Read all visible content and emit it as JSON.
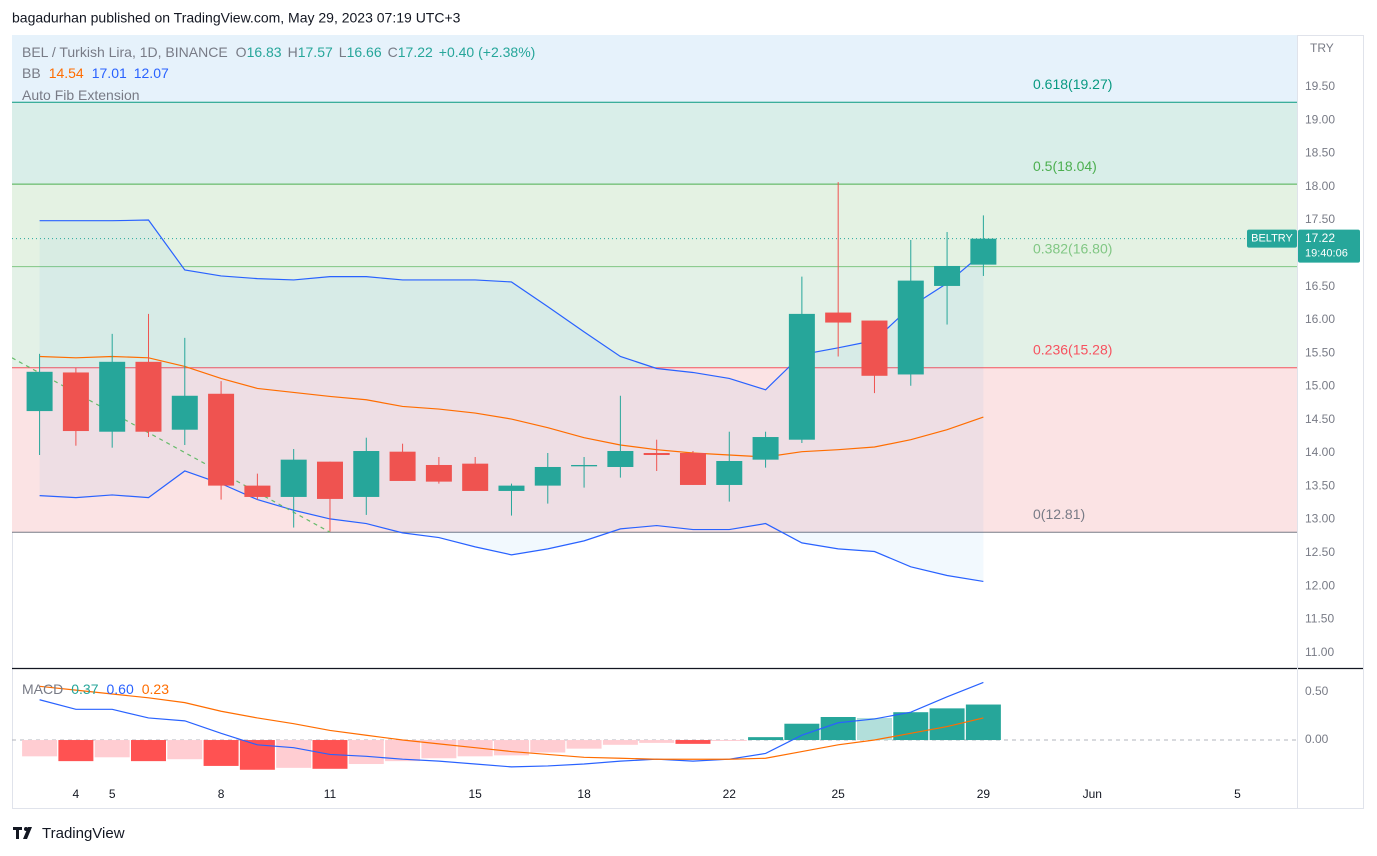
{
  "header": {
    "publisher": "bagadurhan published on TradingView.com, May 29, 2023 07:19 UTC+3"
  },
  "footer": {
    "brand": "TradingView"
  },
  "chart_data": {
    "type": "candlestick",
    "legend": {
      "symbol": "BEL / Turkish Lira, 1D, BINANCE",
      "o_label": "O",
      "open": 16.83,
      "h_label": "H",
      "high": 17.57,
      "l_label": "L",
      "low": 16.66,
      "c_label": "C",
      "close": 17.22,
      "change": "+0.40 (+2.38%)"
    },
    "up_color": "#26a69a",
    "down_color": "#ef5350",
    "currency": "TRY",
    "x": [
      3,
      4,
      5,
      6,
      7,
      8,
      9,
      10,
      11,
      12,
      13,
      14,
      15,
      16,
      17,
      18,
      19,
      20,
      21,
      22,
      23,
      24,
      25,
      26,
      27,
      28,
      29
    ],
    "open": [
      14.63,
      15.21,
      14.32,
      15.37,
      14.35,
      14.89,
      13.51,
      13.34,
      13.87,
      13.34,
      14.02,
      13.82,
      13.84,
      13.43,
      13.51,
      13.8,
      13.79,
      14.0,
      14.0,
      13.52,
      13.9,
      14.2,
      16.11,
      15.99,
      15.18,
      16.51,
      16.83
    ],
    "high": [
      15.49,
      15.28,
      15.79,
      16.09,
      15.73,
      15.08,
      13.69,
      14.06,
      13.87,
      14.23,
      14.14,
      13.94,
      13.94,
      13.54,
      14.0,
      13.94,
      14.86,
      14.2,
      14.03,
      14.32,
      14.32,
      16.65,
      18.07,
      15.99,
      17.2,
      17.32,
      17.57
    ],
    "low": [
      13.97,
      14.11,
      14.08,
      14.24,
      14.12,
      13.3,
      13.3,
      12.88,
      12.82,
      13.07,
      13.58,
      13.54,
      13.43,
      13.06,
      13.24,
      13.48,
      13.63,
      13.73,
      13.52,
      13.27,
      13.78,
      14.15,
      15.45,
      14.9,
      15.01,
      15.93,
      16.66
    ],
    "close": [
      15.22,
      14.33,
      15.37,
      14.32,
      14.86,
      13.51,
      13.34,
      13.9,
      13.31,
      14.03,
      13.58,
      13.57,
      13.43,
      13.51,
      13.79,
      13.82,
      14.03,
      13.97,
      13.52,
      13.88,
      14.24,
      16.09,
      15.96,
      15.16,
      16.59,
      16.81,
      17.22
    ],
    "xlim": [
      2.24,
      37.64
    ],
    "xticks": [
      4,
      8,
      11,
      15,
      18,
      22,
      25,
      29,
      {
        "value": 32,
        "label": "Jun"
      },
      5.0,
      {
        "value": 36,
        "label": "5"
      }
    ],
    "ylim": [
      10.77,
      20.28
    ],
    "yticks": [
      {
        "value": 11,
        "label": "11.00"
      },
      {
        "value": 11.5,
        "label": "11.50"
      },
      {
        "value": 12,
        "label": "12.00"
      },
      {
        "value": 12.5,
        "label": "12.50"
      },
      {
        "value": 13,
        "label": "13.00"
      },
      {
        "value": 13.5,
        "label": "13.50"
      },
      {
        "value": 14,
        "label": "14.00"
      },
      {
        "value": 14.5,
        "label": "14.50"
      },
      {
        "value": 15,
        "label": "15.00"
      },
      {
        "value": 15.5,
        "label": "15.50"
      },
      {
        "value": 16,
        "label": "16.00"
      },
      {
        "value": 16.5,
        "label": "16.50"
      },
      {
        "value": 17,
        "label": "17.00"
      },
      {
        "value": 17.5,
        "label": "17.50"
      },
      {
        "value": 18,
        "label": "18.00"
      },
      {
        "value": 18.5,
        "label": "18.50"
      },
      {
        "value": 19,
        "label": "19.00"
      },
      {
        "value": 19.5,
        "label": "19.50"
      }
    ],
    "grid": false,
    "price_tag": {
      "symbol": "BELTRY",
      "value": 17.22,
      "countdown": "19:40:06"
    },
    "bollinger": {
      "name": "BB",
      "legend_values": [
        14.54,
        17.01,
        12.07
      ],
      "fill": "rgba(33,150,243,0.06)",
      "basis": {
        "color": "#ff6d00",
        "values": [
          15.45,
          15.43,
          15.45,
          15.43,
          15.3,
          15.12,
          14.97,
          14.91,
          14.85,
          14.8,
          14.7,
          14.66,
          14.6,
          14.51,
          14.38,
          14.23,
          14.12,
          14.05,
          14.0,
          13.97,
          13.94,
          14.02,
          14.05,
          14.09,
          14.2,
          14.35,
          14.54
        ]
      },
      "upper": {
        "color": "#2962ff",
        "values": [
          17.49,
          17.49,
          17.49,
          17.5,
          16.75,
          16.66,
          16.62,
          16.6,
          16.65,
          16.65,
          16.6,
          16.6,
          16.6,
          16.57,
          16.2,
          15.82,
          15.45,
          15.27,
          15.21,
          15.12,
          14.95,
          15.48,
          15.58,
          15.69,
          16.2,
          16.55,
          17.01
        ]
      },
      "lower": {
        "color": "#2962ff",
        "values": [
          13.36,
          13.33,
          13.37,
          13.33,
          13.73,
          13.54,
          13.3,
          13.14,
          13.01,
          12.94,
          12.8,
          12.73,
          12.59,
          12.47,
          12.56,
          12.68,
          12.86,
          12.91,
          12.85,
          12.85,
          12.94,
          12.65,
          12.56,
          12.52,
          12.29,
          12.16,
          12.07
        ]
      }
    },
    "fib": {
      "name": "Auto Fib Extension",
      "levels": [
        {
          "label": "0.618(19.27)",
          "price": 19.27,
          "color": "#089981"
        },
        {
          "label": "0.5(18.04)",
          "price": 18.04,
          "color": "#4caf50"
        },
        {
          "label": "0.382(16.80)",
          "price": 16.8,
          "color": "#81c784"
        },
        {
          "label": "0.236(15.28)",
          "price": 15.28,
          "color": "#f7525f"
        },
        {
          "label": "0(12.81)",
          "price": 12.81,
          "color": "#787b86"
        }
      ],
      "zone_fills": [
        "#e6f2fb",
        "#d9eee9",
        "#e4f2e3",
        "#e3f1e7",
        "#fbe3e4"
      ]
    },
    "trend_line": {
      "x": [
        2.24,
        11
      ],
      "y": [
        15.43,
        12.81
      ],
      "color": "#66bb6a"
    },
    "macd": {
      "name": "MACD",
      "legend_values": [
        0.37,
        {
          "value": 0.6,
          "label": "0.60"
        },
        0.23
      ],
      "ylim": [
        -0.375,
        0.73
      ],
      "yticks": [
        {
          "value": 0.5,
          "label": "0.50"
        },
        {
          "value": 0,
          "label": "0.00"
        }
      ],
      "hist_colors": {
        "up": "#26a69a",
        "up_fading": "#b2dfdb",
        "down": "#ff5252",
        "down_fading": "#ffcdd2"
      },
      "histogram": [
        -0.17,
        -0.22,
        -0.18,
        -0.22,
        -0.2,
        -0.27,
        -0.31,
        -0.29,
        -0.3,
        -0.25,
        -0.22,
        -0.19,
        -0.17,
        -0.16,
        -0.13,
        -0.09,
        -0.05,
        -0.03,
        -0.04,
        -0.01,
        0.03,
        0.17,
        0.24,
        0.23,
        0.29,
        0.33,
        0.37
      ],
      "macd_line": {
        "color": "#2962ff",
        "values": [
          0.42,
          0.32,
          0.32,
          0.23,
          0.2,
          0.07,
          -0.05,
          -0.08,
          -0.15,
          -0.17,
          -0.2,
          -0.22,
          -0.25,
          -0.28,
          -0.27,
          -0.25,
          -0.22,
          -0.2,
          -0.22,
          -0.2,
          -0.14,
          0.05,
          0.18,
          0.22,
          0.29,
          0.45,
          0.6
        ]
      },
      "signal_line": {
        "color": "#ff6d00",
        "values": [
          0.56,
          0.52,
          0.48,
          0.44,
          0.39,
          0.3,
          0.23,
          0.17,
          0.1,
          0.05,
          0.0,
          -0.04,
          -0.08,
          -0.12,
          -0.15,
          -0.18,
          -0.19,
          -0.2,
          -0.2,
          -0.2,
          -0.19,
          -0.12,
          -0.05,
          0.0,
          0.07,
          0.14,
          0.23
        ]
      }
    }
  }
}
